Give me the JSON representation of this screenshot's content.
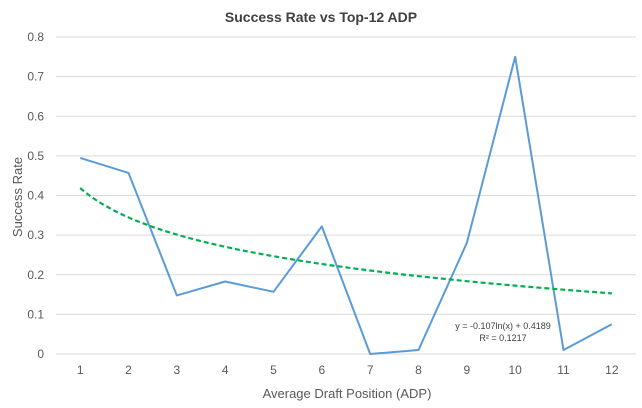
{
  "chart_data": {
    "type": "line",
    "title": "Success Rate vs Top-12 ADP",
    "xlabel": "Average Draft Position (ADP)",
    "ylabel": "Success Rate",
    "x": [
      1,
      2,
      3,
      4,
      5,
      6,
      7,
      8,
      9,
      10,
      11,
      12
    ],
    "x_tick_labels": [
      "1",
      "2",
      "3",
      "4",
      "5",
      "6",
      "7",
      "8",
      "9",
      "10",
      "11",
      "12"
    ],
    "y_tick_labels": [
      "0",
      "0.1",
      "0.2",
      "0.3",
      "0.4",
      "0.5",
      "0.6",
      "0.7",
      "0.8"
    ],
    "ylim": [
      0,
      0.8
    ],
    "grid": true,
    "series": [
      {
        "color": "#5b9bd5",
        "values": [
          0.495,
          0.457,
          0.148,
          0.183,
          0.157,
          0.322,
          0.0,
          0.01,
          0.28,
          0.75,
          0.01,
          0.075
        ]
      }
    ],
    "trendline": {
      "type": "logarithmic",
      "slope": -0.107,
      "intercept": 0.4189,
      "color": "#00b050",
      "equation_label": "y = -0.107ln(x) + 0.4189",
      "r2_label": "R² = 0.1217"
    }
  }
}
